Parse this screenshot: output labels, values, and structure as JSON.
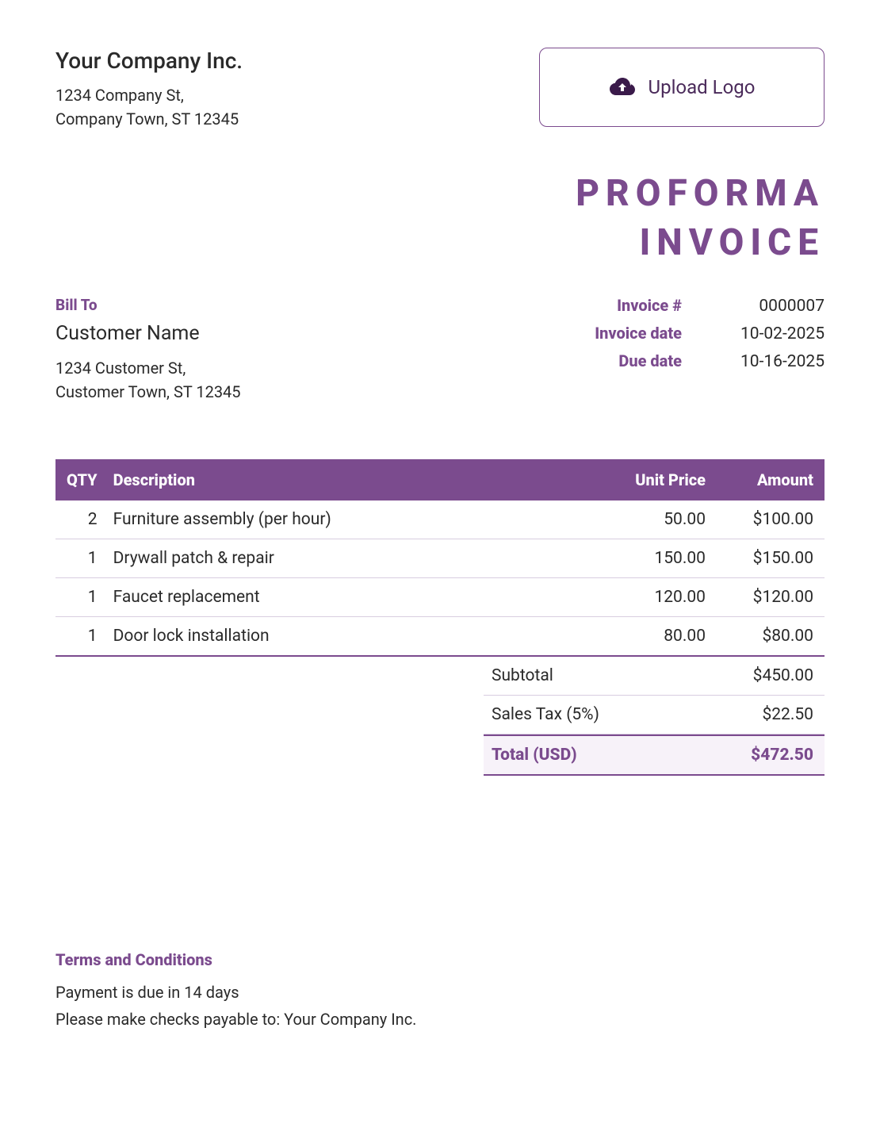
{
  "colors": {
    "accent": "#7b4b8e",
    "text": "#2a2a2a",
    "header_bg": "#7b4b8e",
    "header_text": "#ffffff",
    "row_border": "#d8cde0",
    "total_bg": "#f7f2f9"
  },
  "company": {
    "name": "Your Company Inc.",
    "address_line1": "1234 Company St,",
    "address_line2": "Company Town, ST 12345"
  },
  "upload": {
    "label": "Upload Logo"
  },
  "document": {
    "title_line1": "PROFORMA",
    "title_line2": "INVOICE"
  },
  "bill_to": {
    "label": "Bill To",
    "name": "Customer Name",
    "address_line1": "1234 Customer St,",
    "address_line2": "Customer Town, ST 12345"
  },
  "meta": {
    "invoice_number_label": "Invoice #",
    "invoice_number": "0000007",
    "invoice_date_label": "Invoice date",
    "invoice_date": "10-02-2025",
    "due_date_label": "Due date",
    "due_date": "10-16-2025"
  },
  "items": {
    "headers": {
      "qty": "QTY",
      "description": "Description",
      "unit_price": "Unit Price",
      "amount": "Amount"
    },
    "rows": [
      {
        "qty": "2",
        "description": "Furniture assembly (per hour)",
        "unit_price": "50.00",
        "amount": "$100.00"
      },
      {
        "qty": "1",
        "description": "Drywall patch & repair",
        "unit_price": "150.00",
        "amount": "$150.00"
      },
      {
        "qty": "1",
        "description": "Faucet replacement",
        "unit_price": "120.00",
        "amount": "$120.00"
      },
      {
        "qty": "1",
        "description": "Door lock installation",
        "unit_price": "80.00",
        "amount": "$80.00"
      }
    ]
  },
  "totals": {
    "subtotal_label": "Subtotal",
    "subtotal": "$450.00",
    "tax_label": "Sales Tax (5%)",
    "tax": "$22.50",
    "grand_label": "Total (USD)",
    "grand": "$472.50"
  },
  "terms": {
    "label": "Terms and Conditions",
    "line1": "Payment is due in 14 days",
    "line2": "Please make checks payable to: Your Company Inc."
  }
}
